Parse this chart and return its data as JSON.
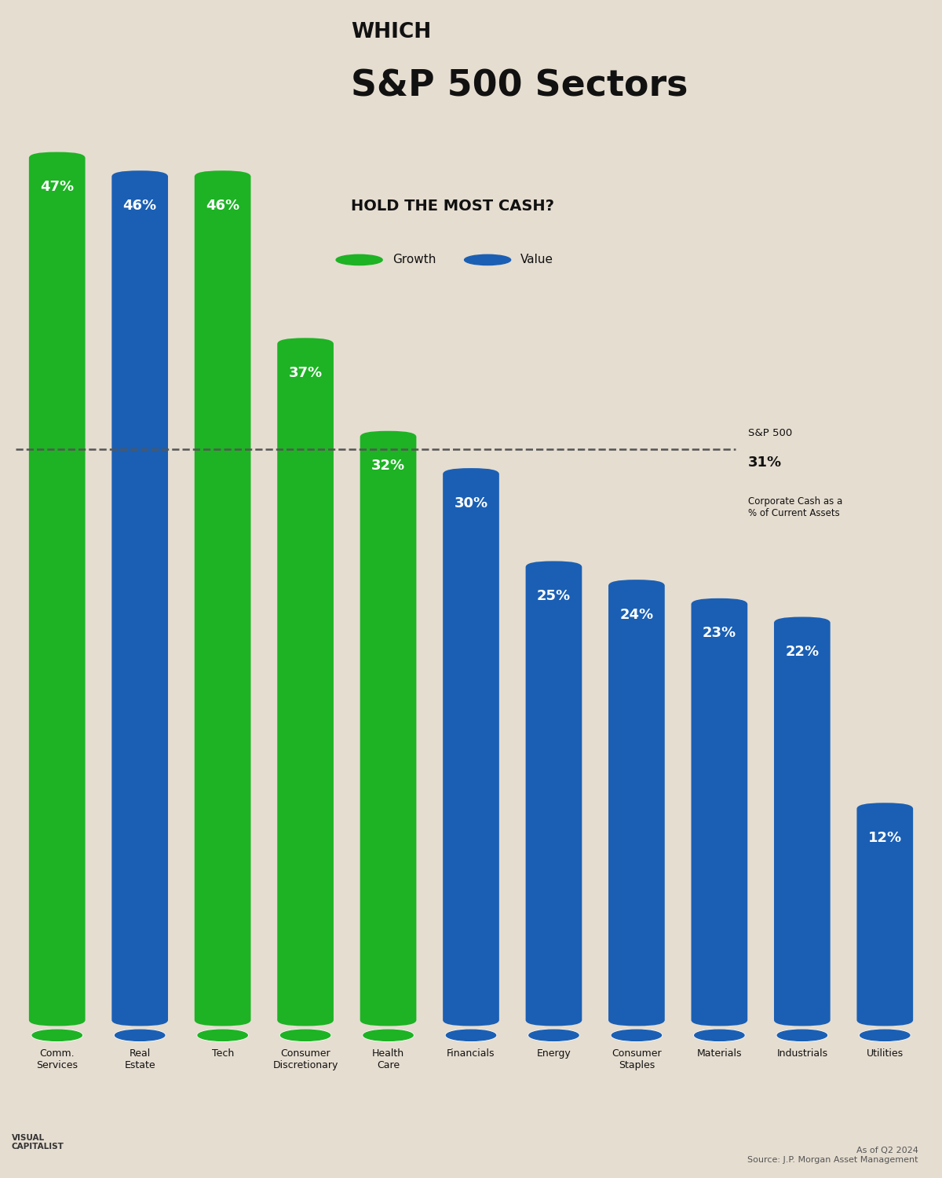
{
  "title_which": "WHICH",
  "title_main": "S&P 500 Sectors",
  "title_sub": "HOLD THE MOST CASH?",
  "legend_growth": "Growth",
  "legend_value": "Value",
  "reference_line_value": 31,
  "source_text": "As of Q2 2024\nSource: J.P. Morgan Asset Management",
  "categories": [
    "Comm.\nServices",
    "Real\nEstate",
    "Tech",
    "Consumer\nDiscretionary",
    "Health\nCare",
    "Financials",
    "Energy",
    "Consumer\nStaples",
    "Materials",
    "Industrials",
    "Utilities"
  ],
  "values": [
    47,
    46,
    46,
    37,
    32,
    30,
    25,
    24,
    23,
    22,
    12
  ],
  "colors": [
    "#1db324",
    "#1a5fb4",
    "#1db324",
    "#1db324",
    "#1db324",
    "#1a5fb4",
    "#1a5fb4",
    "#1a5fb4",
    "#1a5fb4",
    "#1a5fb4",
    "#1a5fb4"
  ],
  "green_color": "#1db324",
  "blue_color": "#1a5fb4",
  "bg_color": "#e5ddd0",
  "text_color_white": "#ffffff",
  "text_color_dark": "#111111",
  "bar_width": 0.68,
  "ylim_max": 55,
  "ylim_min": -8
}
